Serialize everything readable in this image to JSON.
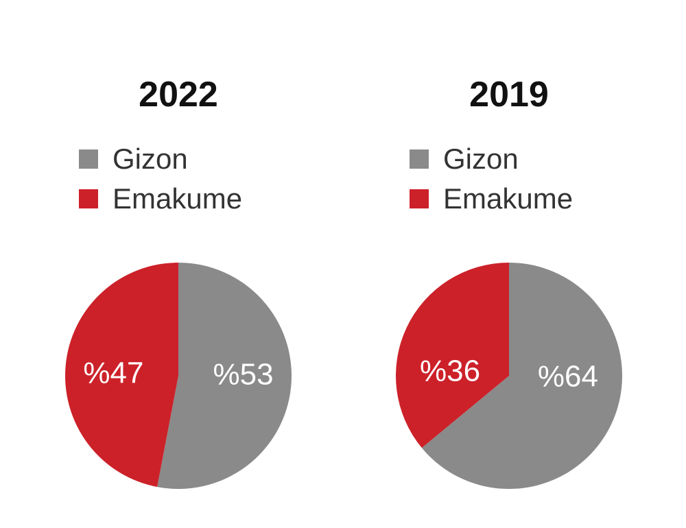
{
  "colors": {
    "Gizon": "#8a8a8a",
    "Emakume": "#cc2129"
  },
  "chart_data": [
    {
      "type": "pie",
      "title": "2022",
      "legend": [
        "Gizon",
        "Emakume"
      ],
      "legend_position": "top-left",
      "slices": [
        {
          "label": "Gizon",
          "value": 53,
          "display": "%53"
        },
        {
          "label": "Emakume",
          "value": 47,
          "display": "%47"
        }
      ]
    },
    {
      "type": "pie",
      "title": "2019",
      "legend": [
        "Gizon",
        "Emakume"
      ],
      "legend_position": "top-left",
      "slices": [
        {
          "label": "Gizon",
          "value": 64,
          "display": "%64"
        },
        {
          "label": "Emakume",
          "value": 36,
          "display": "%36"
        }
      ]
    }
  ]
}
